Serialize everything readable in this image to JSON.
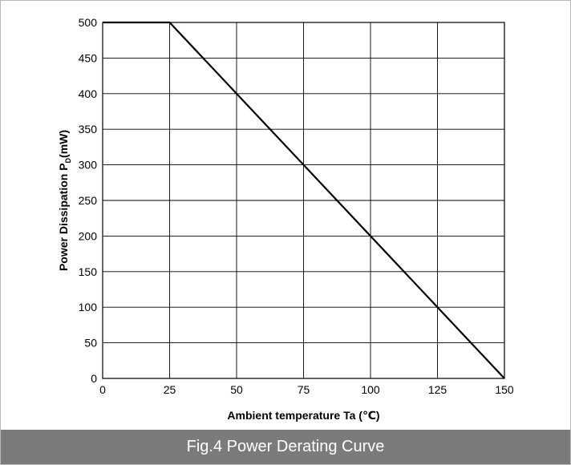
{
  "chart_data": {
    "type": "line",
    "title": "",
    "xlabel": "Ambient temperature  Ta (℃)",
    "ylabel": {
      "main": "Power Dissipation  P",
      "subscript": "D",
      "unit": "(mW)"
    },
    "xlim": [
      0,
      150
    ],
    "ylim": [
      0,
      500
    ],
    "x_ticks": [
      0,
      25,
      50,
      75,
      100,
      125,
      150
    ],
    "y_ticks": [
      0,
      50,
      100,
      150,
      200,
      250,
      300,
      350,
      400,
      450,
      500
    ],
    "grid": true,
    "series": [
      {
        "x": [
          0,
          25,
          150
        ],
        "y": [
          500,
          500,
          0
        ],
        "color": "#000000"
      }
    ]
  },
  "caption": "Fig.4  Power Derating Curve",
  "colors": {
    "caption_background": "#7b7b7b",
    "grid": "#000000",
    "line": "#000000"
  }
}
